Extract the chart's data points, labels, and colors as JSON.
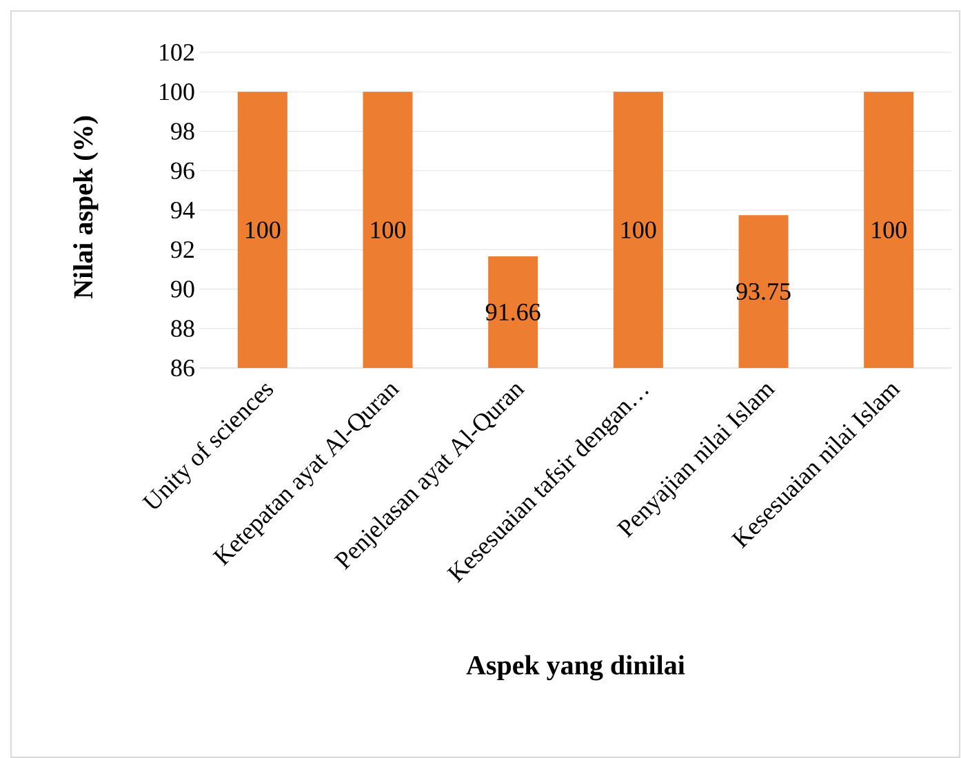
{
  "chart_data": {
    "type": "bar",
    "xlabel": "Aspek yang dinilai",
    "ylabel": "Nilai aspek (%)",
    "categories": [
      "Unity of sciences",
      "Ketepatan ayat Al-Quran",
      "Penjelasan ayat Al-Quran",
      "Kesesuaian tafsir dengan…",
      "Penyajian nilai Islam",
      "Kesesuaian nilai Islam"
    ],
    "values": [
      100,
      100,
      91.66,
      100,
      93.75,
      100
    ],
    "color": "#ed7d31",
    "ylim": [
      86,
      102
    ],
    "yticks": [
      86,
      88,
      90,
      92,
      94,
      96,
      98,
      100,
      102
    ],
    "grid": "y",
    "data_labels": true
  }
}
